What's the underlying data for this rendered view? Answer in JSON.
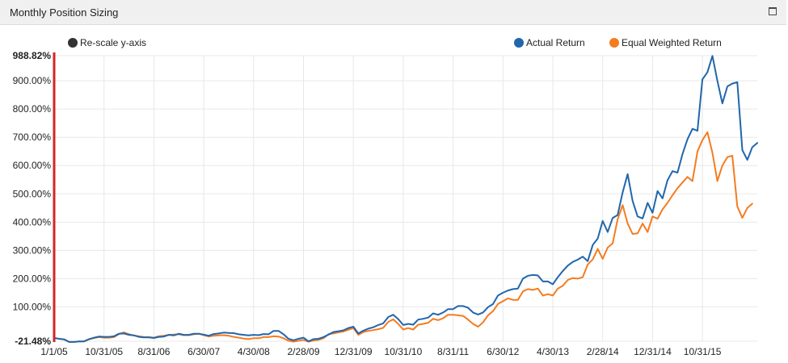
{
  "panel": {
    "title": "Monthly Position Sizing"
  },
  "controls": {
    "rescale_label": "Re-scale y-axis"
  },
  "colors": {
    "actual": "#2166ac",
    "equal": "#f47c20",
    "marker": "#d4242a",
    "rescale": "#333333",
    "grid": "#e8e8e8"
  },
  "icons": {
    "maximize": "window-maximize-icon",
    "rescale": "circle-dot-icon"
  },
  "chart_data": {
    "type": "line",
    "title": "",
    "xlabel": "",
    "ylabel": "",
    "ylim": [
      -21.48,
      988.82
    ],
    "y_tick_values": [
      -21.48,
      100,
      200,
      300,
      400,
      500,
      600,
      700,
      800,
      900,
      988.82
    ],
    "y_tick_labels": [
      "-21.48%",
      "100.00%",
      "200.00%",
      "300.00%",
      "400.00%",
      "500.00%",
      "600.00%",
      "700.00%",
      "800.00%",
      "900.00%",
      "988.82%"
    ],
    "y_bold_labels": [
      "-21.48%",
      "988.82%"
    ],
    "x_tick_labels": [
      "1/1/05",
      "10/31/05",
      "8/31/06",
      "6/30/07",
      "4/30/08",
      "2/28/09",
      "12/31/09",
      "10/31/10",
      "8/31/11",
      "6/30/12",
      "4/30/13",
      "2/28/14",
      "12/31/14",
      "10/31/15"
    ],
    "x_tick_index": [
      0,
      10,
      20,
      30,
      40,
      50,
      60,
      70,
      80,
      90,
      100,
      110,
      120,
      130
    ],
    "grid": true,
    "legend_position": "top-right",
    "series": [
      {
        "name": "Actual Return",
        "values": [
          -10,
          -13,
          -15,
          -24,
          -24,
          -22,
          -22,
          -14,
          -9,
          -5,
          -6,
          -6,
          -4,
          5,
          6,
          1,
          -1,
          -6,
          -8,
          -8,
          -10,
          -6,
          -5,
          1,
          -1,
          5,
          1,
          1,
          5,
          5,
          2,
          -2,
          4,
          6,
          9,
          8,
          7,
          3,
          1,
          -1,
          1,
          0,
          4,
          3,
          15,
          15,
          3,
          -13,
          -18,
          -13,
          -9,
          -22,
          -14,
          -13,
          -7,
          2,
          11,
          14,
          17,
          25,
          30,
          6,
          16,
          23,
          28,
          36,
          42,
          64,
          72,
          57,
          36,
          40,
          37,
          55,
          58,
          62,
          77,
          72,
          80,
          92,
          92,
          103,
          103,
          97,
          80,
          73,
          80,
          99,
          110,
          140,
          150,
          158,
          163,
          165,
          200,
          210,
          213,
          211,
          190,
          190,
          180,
          205,
          227,
          246,
          259,
          267,
          278,
          262,
          319,
          342,
          404,
          365,
          415,
          425,
          505,
          570,
          475,
          420,
          413,
          468,
          433,
          510,
          484,
          548,
          580,
          575,
          640,
          693,
          730,
          723,
          905,
          930,
          988,
          900,
          820,
          880,
          890,
          895,
          655,
          620,
          665,
          680
        ]
      },
      {
        "name": "Equal Weighted Return",
        "values": [
          -10,
          -13,
          -15,
          -24,
          -24,
          -22,
          -22,
          -15,
          -10,
          -7,
          -9,
          -9,
          -7,
          4,
          10,
          3,
          -1,
          -4,
          -7,
          -7,
          -9,
          -4,
          -2,
          1,
          2,
          3,
          0,
          0,
          3,
          5,
          0,
          -5,
          -2,
          -1,
          0,
          -2,
          -6,
          -9,
          -12,
          -14,
          -11,
          -11,
          -7,
          -7,
          -4,
          -5,
          -11,
          -20,
          -23,
          -20,
          -17,
          -23,
          -19,
          -17,
          -11,
          3,
          6,
          10,
          13,
          19,
          25,
          1,
          11,
          15,
          18,
          21,
          26,
          47,
          56,
          40,
          20,
          25,
          20,
          37,
          40,
          44,
          58,
          53,
          60,
          72,
          72,
          70,
          68,
          55,
          40,
          30,
          45,
          70,
          85,
          110,
          120,
          130,
          125,
          125,
          155,
          163,
          160,
          165,
          140,
          145,
          140,
          165,
          175,
          195,
          202,
          200,
          205,
          250,
          268,
          305,
          270,
          310,
          325,
          410,
          460,
          395,
          358,
          360,
          395,
          365,
          420,
          412,
          445,
          468,
          495,
          520,
          540,
          560,
          545,
          650,
          690,
          718,
          645,
          545,
          600,
          630,
          635,
          455,
          415,
          450,
          465
        ]
      }
    ]
  }
}
